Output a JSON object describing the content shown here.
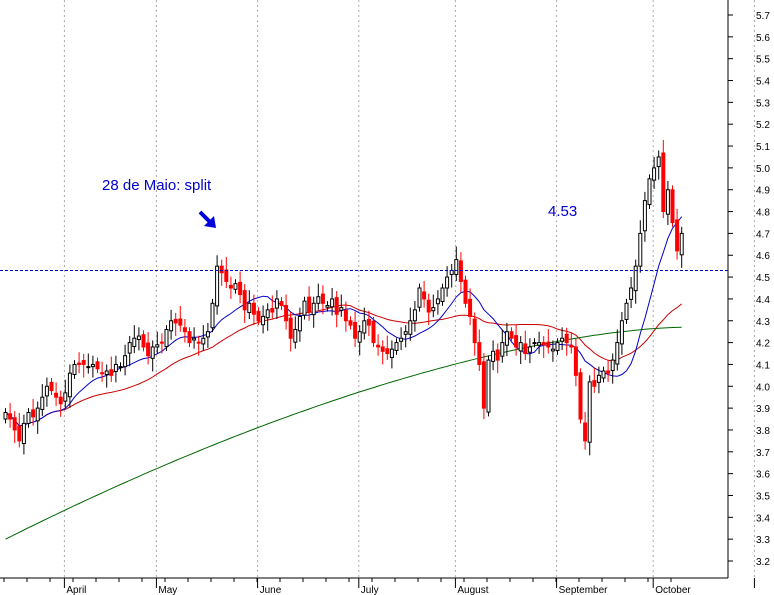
{
  "chart_data": {
    "type": "candlestick",
    "annotation_text": "28 de Maio: split",
    "level_label": "4.53",
    "level_value": 4.53,
    "y_ticks": [
      3.2,
      3.3,
      3.4,
      3.5,
      3.6,
      3.7,
      3.8,
      3.9,
      4.0,
      4.1,
      4.2,
      4.3,
      4.4,
      4.5,
      4.6,
      4.7,
      4.8,
      4.9,
      5.0,
      5.1,
      5.2,
      5.3,
      5.4,
      5.5,
      5.6,
      5.7
    ],
    "y_tick_labels": [
      "3.2",
      "3.3",
      "3.4",
      "3.5",
      "3.6",
      "3.7",
      "3.8",
      "3.9",
      "4.0",
      "4.1",
      "4.2",
      "4.3",
      "4.4",
      "4.5",
      "4.6",
      "4.7",
      "4.8",
      "4.9",
      "5.0",
      "5.1",
      "5.2",
      "5.3",
      "5.4",
      "5.5",
      "5.6",
      "5.7"
    ],
    "ylim": [
      3.15,
      5.75
    ],
    "months": [
      {
        "label": "April",
        "bar": 14
      },
      {
        "label": "May",
        "bar": 34
      },
      {
        "label": "June",
        "bar": 56
      },
      {
        "label": "July",
        "bar": 78
      },
      {
        "label": "August",
        "bar": 99
      },
      {
        "label": "September",
        "bar": 121
      },
      {
        "label": "October",
        "bar": 142
      },
      {
        "label": "",
        "bar": 164
      }
    ],
    "close": [
      3.88,
      3.85,
      3.8,
      3.75,
      3.83,
      3.88,
      3.86,
      3.9,
      3.95,
      4.0,
      3.98,
      3.95,
      3.92,
      3.97,
      4.06,
      4.1,
      4.1,
      4.1,
      4.09,
      4.1,
      4.08,
      4.06,
      4.07,
      4.05,
      4.1,
      4.09,
      4.14,
      4.2,
      4.22,
      4.23,
      4.18,
      4.14,
      4.18,
      4.19,
      4.2,
      4.26,
      4.3,
      4.29,
      4.28,
      4.25,
      4.2,
      4.22,
      4.2,
      4.22,
      4.25,
      4.38,
      4.55,
      4.52,
      4.48,
      4.45,
      4.47,
      4.42,
      4.35,
      4.38,
      4.33,
      4.3,
      4.32,
      4.35,
      4.34,
      4.4,
      4.37,
      4.3,
      4.22,
      4.26,
      4.32,
      4.39,
      4.34,
      4.38,
      4.41,
      4.38,
      4.37,
      4.4,
      4.33,
      4.36,
      4.3,
      4.28,
      4.22,
      4.25,
      4.3,
      4.28,
      4.2,
      4.18,
      4.16,
      4.15,
      4.17,
      4.2,
      4.22,
      4.25,
      4.3,
      4.35,
      4.45,
      4.4,
      4.34,
      4.36,
      4.4,
      4.45,
      4.5,
      4.53,
      4.58,
      4.48,
      4.38,
      4.32,
      4.2,
      4.1,
      3.9,
      4.12,
      4.16,
      4.12,
      4.2,
      4.25,
      4.22,
      4.18,
      4.2,
      4.15,
      4.18,
      4.2,
      4.2,
      4.19,
      4.18,
      4.17,
      4.2,
      4.22,
      4.2,
      4.18,
      4.05,
      3.85,
      3.75,
      4.02,
      4.0,
      4.05,
      4.07,
      4.06,
      4.12,
      4.2,
      4.3,
      4.38,
      4.45,
      4.55,
      4.7,
      4.85,
      4.95,
      5.0,
      5.05,
      4.8,
      4.9,
      4.75,
      4.62,
      4.7
    ],
    "candles_note": "daily OHLC estimated from the chart",
    "ma_short_color": "#0000cc",
    "ma_mid_color": "#cc0000",
    "ma_long_color": "#006600",
    "up_color": "#ffffff",
    "down_color": "#ff0000",
    "level_color": "#0000cc",
    "grid": true
  }
}
